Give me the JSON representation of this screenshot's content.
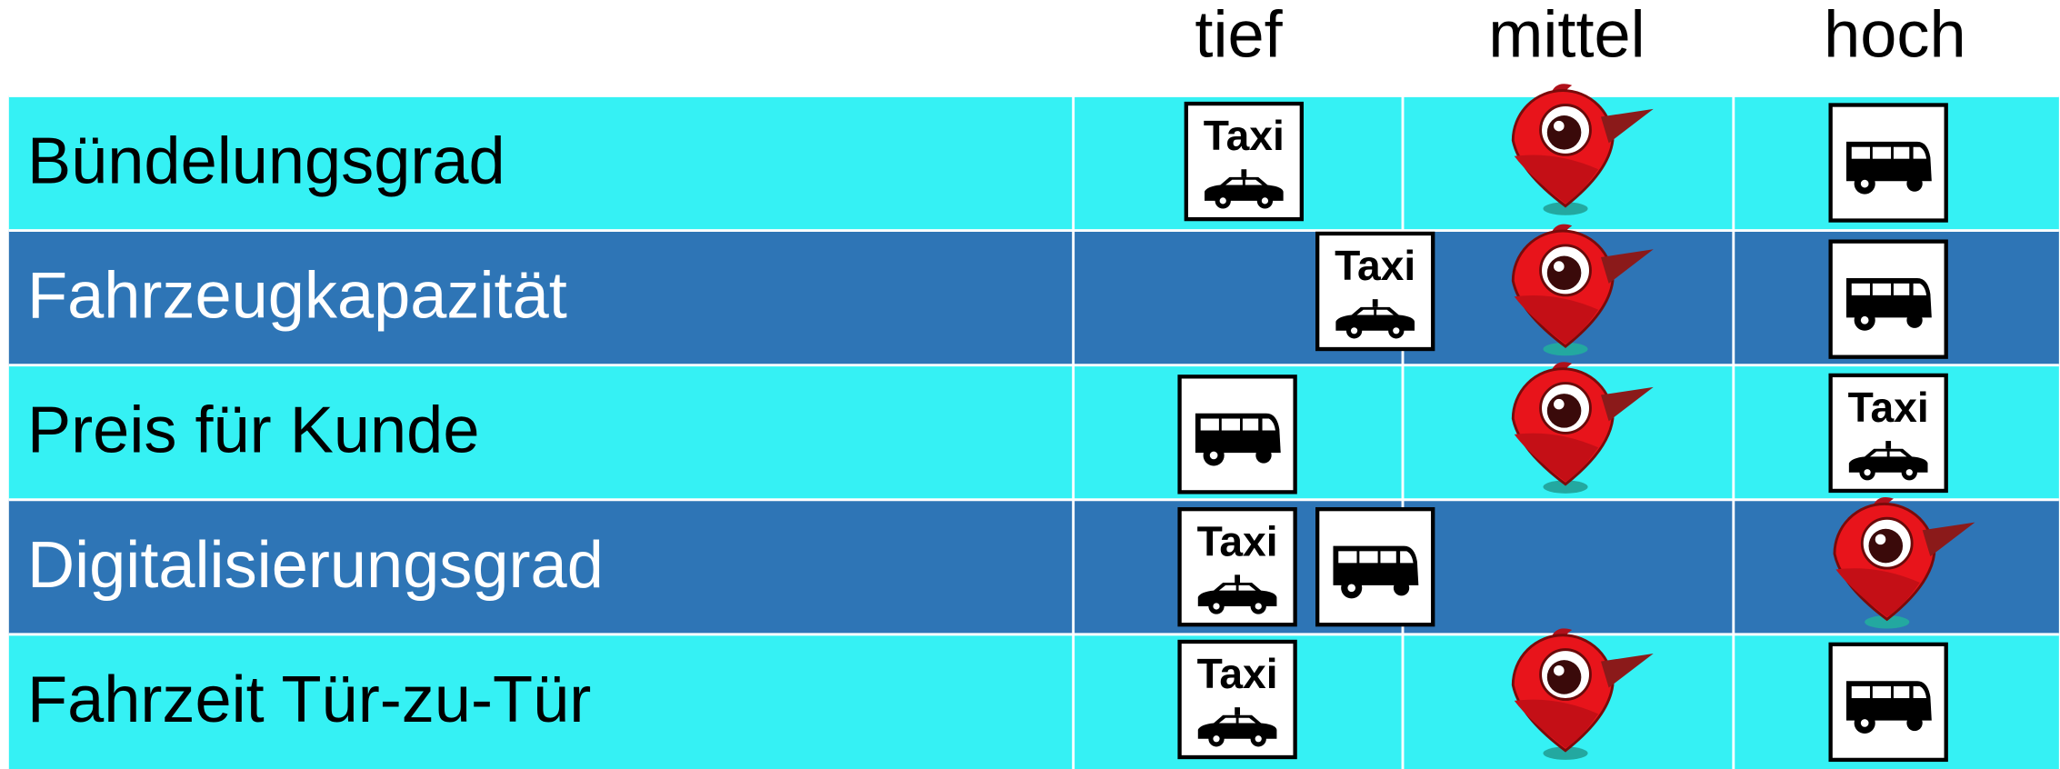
{
  "header": {
    "columns": [
      "tief",
      "mittel",
      "hoch"
    ]
  },
  "rows": [
    {
      "label": "Bündelungsgrad"
    },
    {
      "label": "Fahrzeugkapazität"
    },
    {
      "label": "Preis für Kunde"
    },
    {
      "label": "Digitalisierungsgrad"
    },
    {
      "label": "Fahrzeit Tür-zu-Tür"
    }
  ],
  "taxi_sign": "Taxi"
}
